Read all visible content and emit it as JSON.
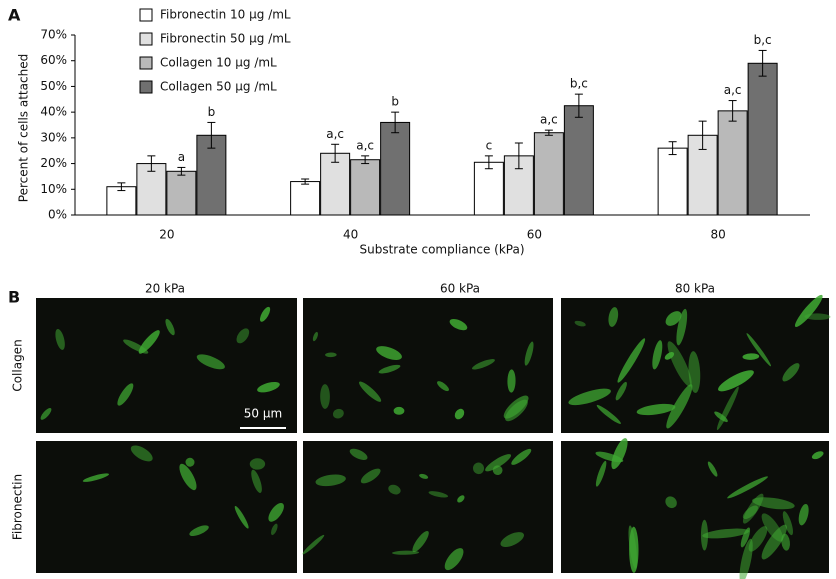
{
  "chart_data": {
    "type": "bar",
    "ylabel": "Percent of cells attached",
    "xlabel": "Substrate compliance (kPa)",
    "categories": [
      "20",
      "40",
      "60",
      "80"
    ],
    "ylim": [
      0,
      70
    ],
    "yticks": [
      {
        "value": 0,
        "label": "0%"
      },
      {
        "value": 10,
        "label": "10%"
      },
      {
        "value": 20,
        "label": "20%"
      },
      {
        "value": 30,
        "label": "30%"
      },
      {
        "value": 40,
        "label": "40%"
      },
      {
        "value": 50,
        "label": "50%"
      },
      {
        "value": 60,
        "label": "60%"
      },
      {
        "value": 70,
        "label": "70%"
      }
    ],
    "series": [
      {
        "name": "Fibronectin 10 μg /mL",
        "color": "#ffffff",
        "values": [
          11,
          13,
          20.5,
          26
        ],
        "errors": [
          1.5,
          1,
          2.5,
          2.5
        ],
        "annotations": [
          null,
          null,
          "c",
          null
        ]
      },
      {
        "name": "Fibronectin 50 μg /mL",
        "color": "#e0e0e0",
        "values": [
          20,
          24,
          23,
          31
        ],
        "errors": [
          3,
          3.5,
          5,
          5.5
        ],
        "annotations": [
          null,
          "a,c",
          null,
          null
        ]
      },
      {
        "name": "Collagen 10 μg /mL",
        "color": "#b9b9b9",
        "values": [
          17,
          21.5,
          32,
          40.5
        ],
        "errors": [
          1.5,
          1.5,
          1,
          4
        ],
        "annotations": [
          "a",
          "a,c",
          "a,c",
          "a,c"
        ]
      },
      {
        "name": "Collagen 50 μg /mL",
        "color": "#707070",
        "values": [
          31,
          36,
          42.5,
          59
        ],
        "errors": [
          5,
          4,
          4.5,
          5
        ],
        "annotations": [
          "b",
          "b",
          "b,c",
          "b,c"
        ]
      }
    ]
  },
  "panels": {
    "a": "A",
    "b": "B"
  },
  "micrographs": {
    "columns": [
      "20 kPa",
      "60 kPa",
      "80 kPa"
    ],
    "rows": [
      "Collagen",
      "Fibronectin"
    ],
    "scale_bar": "50 μm"
  }
}
